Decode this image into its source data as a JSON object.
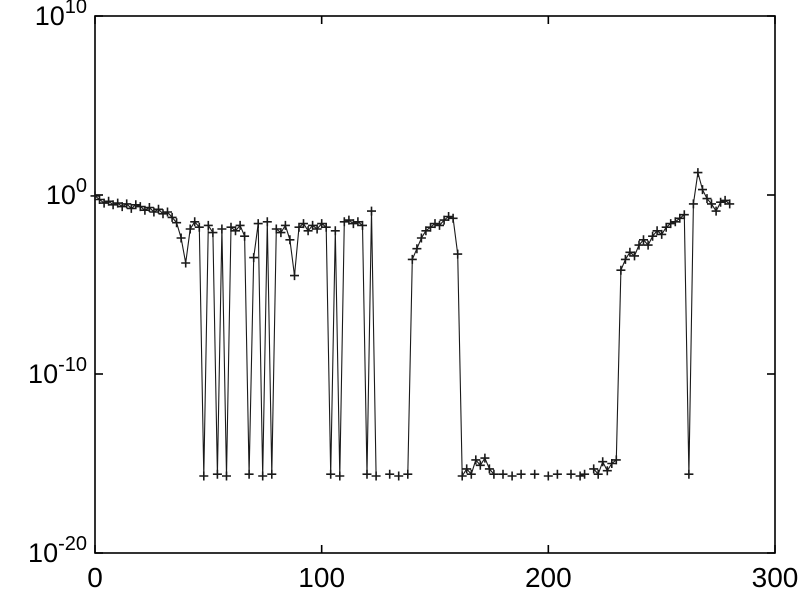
{
  "figure": {
    "background": "#ffffff",
    "axis_color": "#000000",
    "line_color": "#1a1a1a",
    "marker_symbol": "+",
    "box": true
  },
  "chart_data": {
    "type": "line",
    "title": "",
    "xlabel": "",
    "ylabel": "",
    "grid": false,
    "legend": null,
    "y_scale": "log10",
    "xlim": [
      0,
      300
    ],
    "ylim_log10": [
      -20,
      10
    ],
    "x_ticks": [
      0,
      100,
      200,
      300
    ],
    "y_tick_exponents": [
      10,
      0,
      -10,
      -20
    ],
    "series": [
      {
        "name": "series-1",
        "marker": "+",
        "x": [
          0,
          2,
          4,
          6,
          8,
          10,
          12,
          14,
          16,
          18,
          20,
          22,
          24,
          26,
          28,
          30,
          32,
          34,
          36,
          38,
          40,
          42,
          44,
          46,
          48,
          50,
          52,
          54,
          56,
          58,
          60,
          62,
          64,
          66,
          68,
          70,
          72,
          74,
          76,
          78,
          80,
          82,
          84,
          86,
          88,
          90,
          92,
          94,
          96,
          98,
          100,
          102,
          104,
          106,
          108,
          110,
          112,
          114,
          116,
          118,
          120,
          122,
          124,
          126,
          128,
          130,
          132,
          134,
          136,
          138,
          140,
          142,
          144,
          146,
          148,
          150,
          152,
          154,
          156,
          158,
          160,
          162,
          164,
          166,
          168,
          170,
          172,
          174,
          176,
          178,
          180,
          182,
          184,
          186,
          188,
          190,
          192,
          194,
          196,
          198,
          200,
          202,
          204,
          206,
          208,
          210,
          212,
          214,
          216,
          218,
          220,
          222,
          224,
          226,
          228,
          230,
          232,
          234,
          236,
          238,
          240,
          242,
          244,
          246,
          248,
          250,
          252,
          254,
          256,
          258,
          260,
          262,
          264,
          266,
          268,
          270,
          272,
          274,
          276,
          278,
          280
        ],
        "log10_y": [
          -0.05,
          -0.25,
          -0.45,
          -0.35,
          -0.55,
          -0.45,
          -0.65,
          -0.5,
          -0.75,
          -0.55,
          -0.65,
          -0.85,
          -0.7,
          -0.95,
          -0.8,
          -1.05,
          -0.95,
          -1.25,
          -1.55,
          -2.4,
          -3.8,
          -1.9,
          -1.5,
          -1.8,
          -15.7,
          -1.7,
          -2.1,
          -15.6,
          -1.9,
          -15.7,
          -1.8,
          -2.0,
          -1.7,
          -2.3,
          -15.6,
          -3.5,
          -1.6,
          -15.7,
          -1.5,
          -15.6,
          -1.9,
          -2.1,
          -1.7,
          -2.5,
          -4.5,
          -1.8,
          -1.6,
          -2.0,
          -1.7,
          -1.9,
          -1.6,
          -1.8,
          -15.6,
          -2.0,
          -15.7,
          -1.5,
          -1.4,
          -1.6,
          -1.5,
          -1.7,
          -15.6,
          -0.9,
          -15.7,
          null,
          null,
          -15.6,
          null,
          -15.7,
          null,
          -15.6,
          -3.6,
          -3.0,
          -2.4,
          -2.0,
          -1.8,
          -1.6,
          -1.7,
          -1.4,
          -1.2,
          -1.3,
          -3.3,
          -15.7,
          -15.3,
          -15.6,
          -14.8,
          -15.1,
          -14.7,
          -15.3,
          -15.6,
          null,
          -15.6,
          null,
          -15.7,
          null,
          -15.6,
          null,
          null,
          -15.6,
          null,
          null,
          -15.7,
          null,
          -15.6,
          null,
          null,
          -15.6,
          null,
          -15.7,
          -15.6,
          null,
          -15.3,
          -15.6,
          -14.9,
          -15.4,
          -15.0,
          -14.8,
          -4.2,
          -3.6,
          -3.2,
          -3.4,
          -2.8,
          -2.5,
          -2.8,
          -2.3,
          -2.0,
          -2.2,
          -1.8,
          -1.6,
          -1.5,
          -1.3,
          -1.1,
          -15.6,
          -0.5,
          1.25,
          0.3,
          -0.2,
          -0.5,
          -0.9,
          -0.4,
          -0.3,
          -0.5
        ]
      }
    ]
  }
}
